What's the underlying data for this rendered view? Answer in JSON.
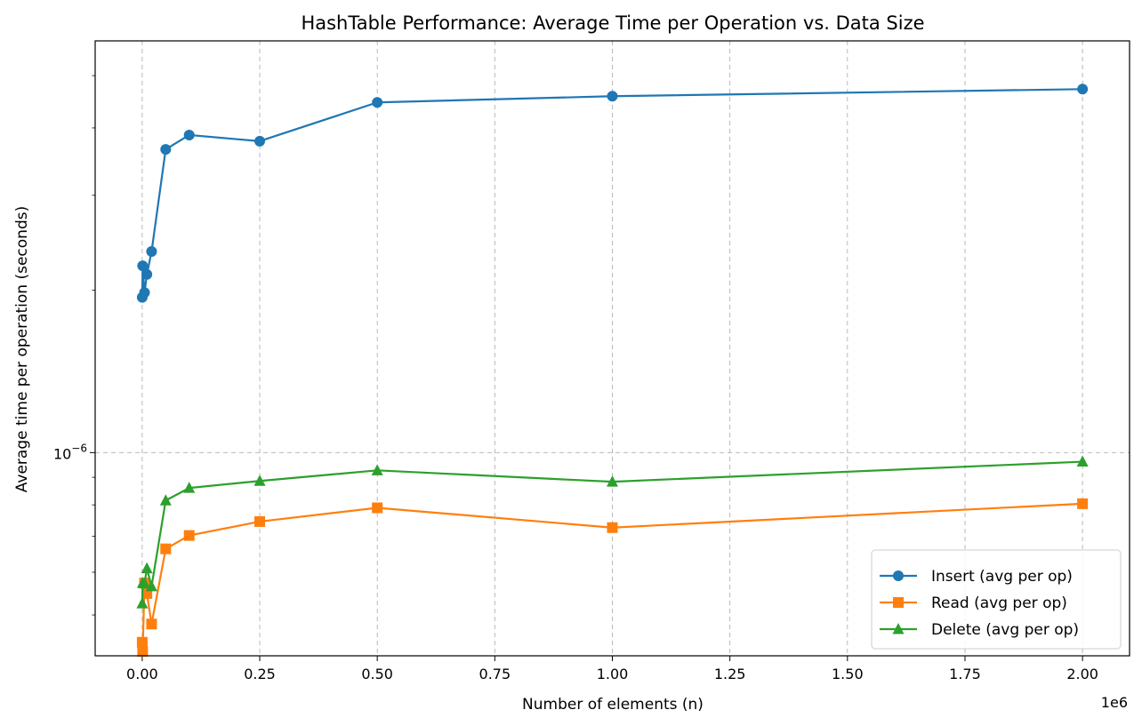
{
  "chart_data": {
    "type": "line",
    "title": "HashTable Performance: Average Time per Operation vs. Data Size",
    "xlabel": "Number of elements (n)",
    "ylabel": "Average time per operation (seconds)",
    "x_offset_label": "1e6",
    "x_scale": "linear",
    "y_scale": "log",
    "xlim": [
      -100000,
      2100000
    ],
    "ylim": [
      4.2e-07,
      5.8e-06
    ],
    "x_ticks": [
      0,
      250000,
      500000,
      750000,
      1000000,
      1250000,
      1500000,
      1750000,
      2000000
    ],
    "x_tick_labels": [
      "0.00",
      "0.25",
      "0.50",
      "0.75",
      "1.00",
      "1.25",
      "1.50",
      "1.75",
      "2.00"
    ],
    "y_major_tick": {
      "value": 1e-06,
      "label_base": "10",
      "label_exp": "−6"
    },
    "grid": true,
    "legend_position": "lower-right",
    "x": [
      100,
      1000,
      5000,
      10000,
      20000,
      50000,
      100000,
      250000,
      500000,
      1000000,
      2000000
    ],
    "series": [
      {
        "name": "Insert (avg per op)",
        "color": "#1f77b4",
        "marker": "circle",
        "values": [
          1.94e-06,
          2.22e-06,
          1.98e-06,
          2.14e-06,
          2.36e-06,
          3.65e-06,
          3.88e-06,
          3.78e-06,
          4.46e-06,
          4.58e-06,
          4.72e-06
        ]
      },
      {
        "name": "Read (avg per op)",
        "color": "#ff7f0e",
        "marker": "square",
        "values": [
          4.45e-07,
          4.28e-07,
          5.73e-07,
          5.48e-07,
          4.81e-07,
          6.63e-07,
          7.02e-07,
          7.45e-07,
          7.9e-07,
          7.26e-07,
          8.04e-07
        ]
      },
      {
        "name": "Delete (avg per op)",
        "color": "#2ca02c",
        "marker": "triangle",
        "values": [
          5.25e-07,
          5.73e-07,
          5.72e-07,
          6.1e-07,
          5.65e-07,
          8.15e-07,
          8.6e-07,
          8.86e-07,
          9.27e-07,
          8.83e-07,
          9.62e-07
        ]
      }
    ]
  }
}
